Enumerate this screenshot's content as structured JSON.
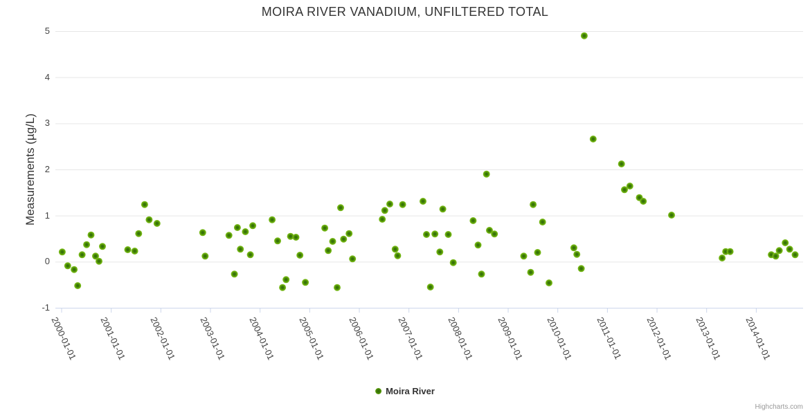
{
  "header": {
    "title": "MOIRA RIVER VANADIUM, UNFILTERED TOTAL"
  },
  "legend": {
    "label": "Moira River"
  },
  "credit": {
    "label": "Highcharts.com"
  },
  "colors": {
    "point_outer": "#82bf29",
    "point_mid": "#6cb00d",
    "point_inner": "#2f6b06",
    "grid_line": "#e6e6e6",
    "axis_line": "#ccd6eb",
    "title_text": "#333333",
    "label_text": "#444444",
    "credit_text": "#999999"
  },
  "chart_data": {
    "type": "scatter",
    "title": "MOIRA RIVER VANADIUM, UNFILTERED TOTAL",
    "xlabel": "",
    "ylabel": "Measurements (µg/L)",
    "ylim": [
      -1,
      5
    ],
    "y_ticks": [
      5,
      4,
      3,
      2,
      1,
      0,
      -1
    ],
    "x_tick_labels": [
      "2000-01-01",
      "2001-01-01",
      "2002-01-01",
      "2003-01-01",
      "2004-01-01",
      "2005-01-01",
      "2006-01-01",
      "2007-01-01",
      "2008-01-01",
      "2009-01-01",
      "2010-01-01",
      "2011-01-01",
      "2012-01-01",
      "2013-01-01",
      "2014-01-01"
    ],
    "grid": "horizontal-only",
    "legend_position": "bottom-center",
    "series": [
      {
        "name": "Moira River",
        "marker_color": "#6cb00d",
        "points_format": "[decimal_year, micrograms_per_litre]",
        "points": [
          [
            2000.02,
            0.21
          ],
          [
            2000.13,
            -0.09
          ],
          [
            2000.26,
            -0.17
          ],
          [
            2000.33,
            -0.52
          ],
          [
            2000.42,
            0.15
          ],
          [
            2000.51,
            0.37
          ],
          [
            2000.6,
            0.58
          ],
          [
            2000.69,
            0.12
          ],
          [
            2000.76,
            0.01
          ],
          [
            2000.83,
            0.33
          ],
          [
            2001.34,
            0.26
          ],
          [
            2001.48,
            0.23
          ],
          [
            2001.56,
            0.61
          ],
          [
            2001.68,
            1.24
          ],
          [
            2001.77,
            0.91
          ],
          [
            2001.93,
            0.83
          ],
          [
            2002.85,
            0.63
          ],
          [
            2002.9,
            0.12
          ],
          [
            2003.38,
            0.57
          ],
          [
            2003.49,
            -0.27
          ],
          [
            2003.55,
            0.74
          ],
          [
            2003.61,
            0.27
          ],
          [
            2003.71,
            0.65
          ],
          [
            2003.81,
            0.15
          ],
          [
            2003.86,
            0.78
          ],
          [
            2004.25,
            0.91
          ],
          [
            2004.36,
            0.45
          ],
          [
            2004.46,
            -0.56
          ],
          [
            2004.53,
            -0.39
          ],
          [
            2004.62,
            0.55
          ],
          [
            2004.73,
            0.53
          ],
          [
            2004.81,
            0.14
          ],
          [
            2004.92,
            -0.45
          ],
          [
            2005.31,
            0.73
          ],
          [
            2005.38,
            0.24
          ],
          [
            2005.47,
            0.44
          ],
          [
            2005.56,
            -0.56
          ],
          [
            2005.63,
            1.17
          ],
          [
            2005.69,
            0.49
          ],
          [
            2005.8,
            0.61
          ],
          [
            2005.87,
            0.06
          ],
          [
            2006.47,
            0.92
          ],
          [
            2006.52,
            1.11
          ],
          [
            2006.62,
            1.25
          ],
          [
            2006.73,
            0.27
          ],
          [
            2006.78,
            0.13
          ],
          [
            2006.88,
            1.24
          ],
          [
            2007.29,
            1.31
          ],
          [
            2007.36,
            0.59
          ],
          [
            2007.44,
            -0.55
          ],
          [
            2007.53,
            0.6
          ],
          [
            2007.63,
            0.21
          ],
          [
            2007.69,
            1.14
          ],
          [
            2007.8,
            0.59
          ],
          [
            2007.9,
            -0.02
          ],
          [
            2008.3,
            0.89
          ],
          [
            2008.4,
            0.36
          ],
          [
            2008.47,
            -0.27
          ],
          [
            2008.57,
            1.9
          ],
          [
            2008.63,
            0.68
          ],
          [
            2008.73,
            0.6
          ],
          [
            2009.32,
            0.12
          ],
          [
            2009.46,
            -0.23
          ],
          [
            2009.51,
            1.24
          ],
          [
            2009.6,
            0.2
          ],
          [
            2009.7,
            0.86
          ],
          [
            2009.83,
            -0.46
          ],
          [
            2010.33,
            0.3
          ],
          [
            2010.39,
            0.16
          ],
          [
            2010.48,
            -0.15
          ],
          [
            2010.54,
            4.9
          ],
          [
            2010.72,
            2.66
          ],
          [
            2011.29,
            2.12
          ],
          [
            2011.35,
            1.56
          ],
          [
            2011.46,
            1.64
          ],
          [
            2011.65,
            1.39
          ],
          [
            2011.73,
            1.31
          ],
          [
            2012.3,
            1.01
          ],
          [
            2013.32,
            0.08
          ],
          [
            2013.39,
            0.22
          ],
          [
            2013.48,
            0.22
          ],
          [
            2014.31,
            0.15
          ],
          [
            2014.4,
            0.12
          ],
          [
            2014.47,
            0.24
          ],
          [
            2014.59,
            0.41
          ],
          [
            2014.68,
            0.27
          ],
          [
            2014.79,
            0.15
          ]
        ]
      }
    ]
  }
}
